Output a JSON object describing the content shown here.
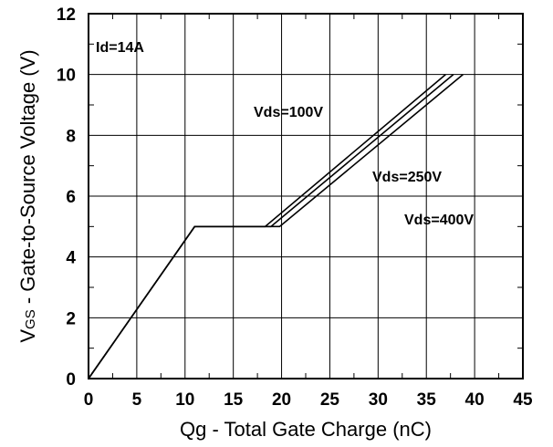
{
  "chart_data": {
    "type": "line",
    "xlabel": "Qg - Total Gate Charge (nC)",
    "ylabel_prefix": "V",
    "ylabel_subscript": "GS",
    "ylabel_rest": " - Gate-to-Source Voltage (V)",
    "xlim": [
      0,
      45
    ],
    "ylim": [
      0,
      12
    ],
    "xticks": [
      0,
      5,
      10,
      15,
      20,
      25,
      30,
      35,
      40,
      45
    ],
    "yticks": [
      0,
      2,
      4,
      6,
      8,
      10,
      12
    ],
    "grid": true,
    "annotations": {
      "id": "Id=14A",
      "vds100": "Vds=100V",
      "vds250": "Vds=250V",
      "vds400": "Vds=400V"
    },
    "series": [
      {
        "name": "Vds=100V",
        "x": [
          0,
          11.0,
          18.3,
          37.0
        ],
        "y": [
          0,
          5,
          5,
          10
        ]
      },
      {
        "name": "Vds=250V",
        "x": [
          0,
          11.0,
          18.9,
          37.8
        ],
        "y": [
          0,
          5,
          5,
          10
        ]
      },
      {
        "name": "Vds=400V",
        "x": [
          0,
          11.0,
          19.8,
          38.8
        ],
        "y": [
          0,
          5,
          5,
          10
        ]
      }
    ]
  }
}
